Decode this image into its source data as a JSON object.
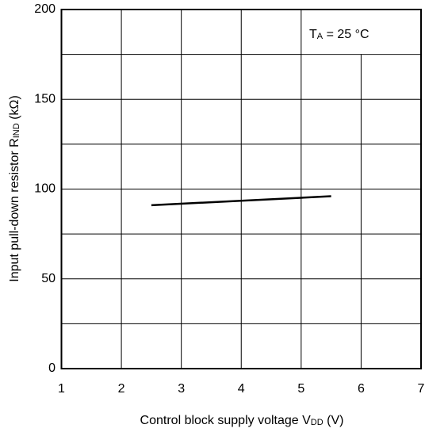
{
  "chart_data": {
    "type": "line",
    "annotation": [
      "T",
      "A",
      " = 25 °C"
    ],
    "y_label": [
      "Input pull-down resistor R",
      "IND",
      " (kΩ)"
    ],
    "x_label": [
      "Control block supply voltage V",
      "DD",
      " (V)"
    ],
    "x": [
      2.5,
      5.5
    ],
    "series": [
      {
        "color": "#000000",
        "values": [
          91,
          96
        ]
      }
    ],
    "xlim": [
      1,
      7
    ],
    "xticks": [
      1,
      2,
      3,
      4,
      5,
      6,
      7
    ],
    "ylim": [
      0,
      200
    ],
    "yticks": [
      0,
      50,
      100,
      150,
      200
    ],
    "y_minor_ticks": [
      25,
      75,
      125,
      175
    ],
    "grid": true
  }
}
